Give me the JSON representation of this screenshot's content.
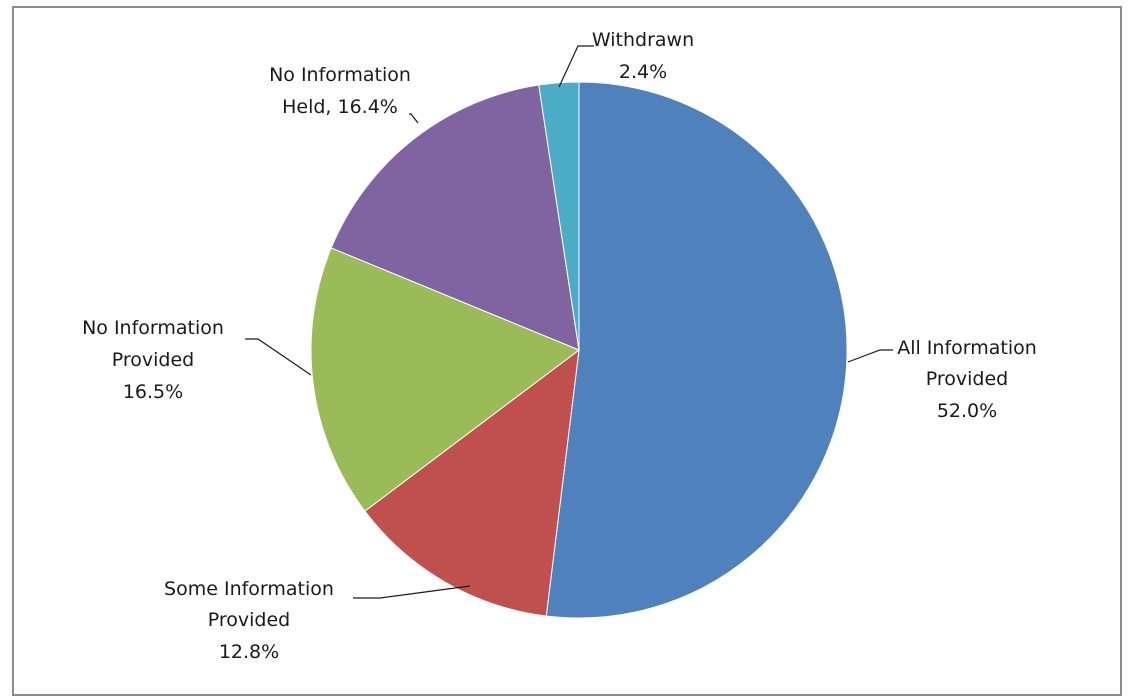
{
  "chart_data": {
    "type": "pie",
    "title": "",
    "slices": [
      {
        "label": "All Information Provided",
        "label_lines": [
          "All Information",
          "Provided",
          "52.0%"
        ],
        "value": 52.0,
        "color": "#4F81BD"
      },
      {
        "label": "Some Information Provided",
        "label_lines": [
          "Some Information",
          "Provided",
          "12.8%"
        ],
        "value": 12.8,
        "color": "#C0504D"
      },
      {
        "label": "No Information Provided",
        "label_lines": [
          "No Information",
          "Provided",
          "16.5%"
        ],
        "value": 16.5,
        "color": "#9BBB59"
      },
      {
        "label": "No Information Held",
        "label_lines": [
          "No Information",
          "Held, 16.4%"
        ],
        "value": 16.4,
        "color": "#8064A2"
      },
      {
        "label": "Withdrawn",
        "label_lines": [
          "Withdrawn",
          "2.4%"
        ],
        "value": 2.4,
        "color": "#4BACC6"
      }
    ],
    "start_angle_deg": 0,
    "direction": "clockwise",
    "legend": "none",
    "data_labels": "outside with leader lines"
  }
}
